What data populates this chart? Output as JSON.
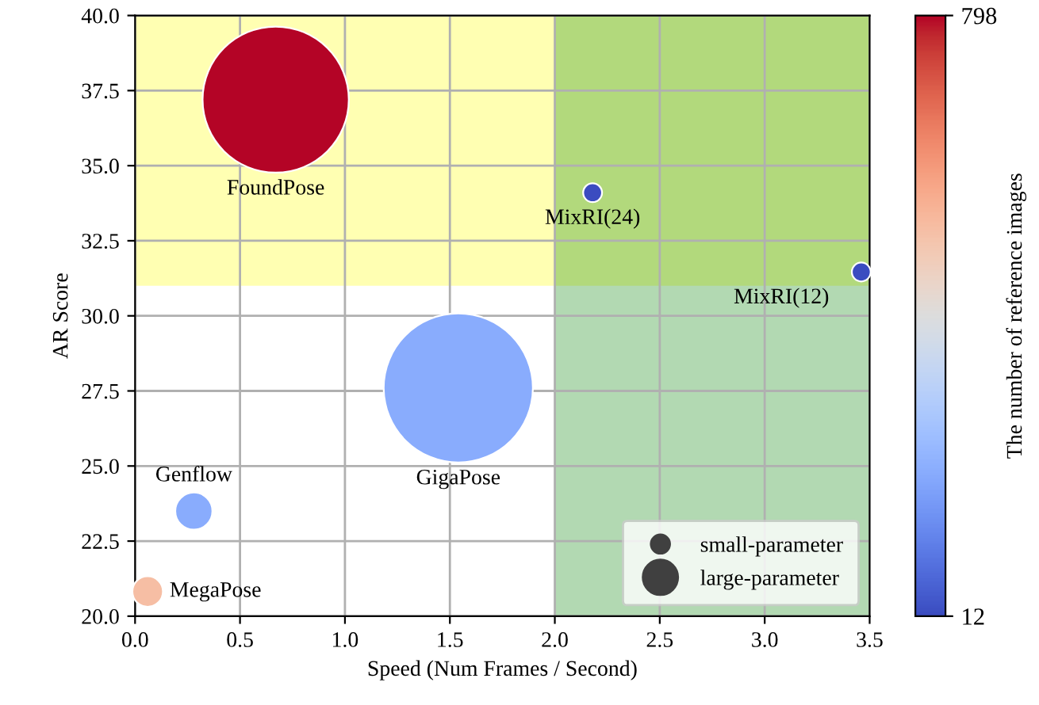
{
  "chart_data": {
    "type": "bubble",
    "xlabel": "Speed (Num Frames / Second)",
    "ylabel": "AR Score",
    "clabel": "The number of reference images",
    "xlim": [
      0,
      3.5
    ],
    "ylim": [
      20,
      40
    ],
    "xticks": [
      {
        "value": 0,
        "label": "0.0"
      },
      {
        "value": 0.5,
        "label": "0.5"
      },
      {
        "value": 1,
        "label": "1.0"
      },
      {
        "value": 1.5,
        "label": "1.5"
      },
      {
        "value": 2,
        "label": "2.0"
      },
      {
        "value": 2.5,
        "label": "2.5"
      },
      {
        "value": 3,
        "label": "3.0"
      },
      {
        "value": 3.5,
        "label": "3.5"
      }
    ],
    "yticks": [
      {
        "value": 20,
        "label": "20.0"
      },
      {
        "value": 22.5,
        "label": "22.5"
      },
      {
        "value": 25,
        "label": "25.0"
      },
      {
        "value": 27.5,
        "label": "27.5"
      },
      {
        "value": 30,
        "label": "30.0"
      },
      {
        "value": 32.5,
        "label": "32.5"
      },
      {
        "value": 35,
        "label": "35.0"
      },
      {
        "value": 37.5,
        "label": "37.5"
      },
      {
        "value": 40,
        "label": "40.0"
      }
    ],
    "clim": [
      12,
      798
    ],
    "cticks": [
      12,
      798
    ],
    "grid": true,
    "legend": "bottom right",
    "bands": [
      {
        "axis": "y",
        "from": 31,
        "to": 40,
        "color": "#ffff00"
      },
      {
        "axis": "x",
        "from": 2,
        "to": 3.5,
        "color": "#008000"
      }
    ],
    "series": [
      {
        "name": "FoundPose",
        "x": [
          0.67
        ],
        "values": [
          37.2
        ],
        "sizes": [
          0.96
        ],
        "cvalues": [
          798
        ]
      },
      {
        "name": "MixRI(24)",
        "x": [
          2.18
        ],
        "values": [
          34.1
        ],
        "sizes": [
          0.016
        ],
        "cvalues": [
          12
        ]
      },
      {
        "name": "MixRI(12)",
        "x": [
          3.46
        ],
        "values": [
          31.46
        ],
        "sizes": [
          0.016
        ],
        "cvalues": [
          12
        ]
      },
      {
        "name": "GigaPose",
        "x": [
          1.54
        ],
        "values": [
          27.6
        ],
        "sizes": [
          1
        ],
        "cvalues": [
          200
        ]
      },
      {
        "name": "Genflow",
        "x": [
          0.28
        ],
        "values": [
          23.5
        ],
        "sizes": [
          0.062
        ],
        "cvalues": [
          200
        ]
      },
      {
        "name": "MegaPose",
        "x": [
          0.06
        ],
        "values": [
          20.82
        ],
        "sizes": [
          0.042
        ],
        "cvalues": [
          520
        ]
      }
    ],
    "size_legend": [
      {
        "value": 0.016,
        "label": "small-parameter"
      },
      {
        "value": 0.055,
        "label": "large-parameter"
      }
    ]
  }
}
